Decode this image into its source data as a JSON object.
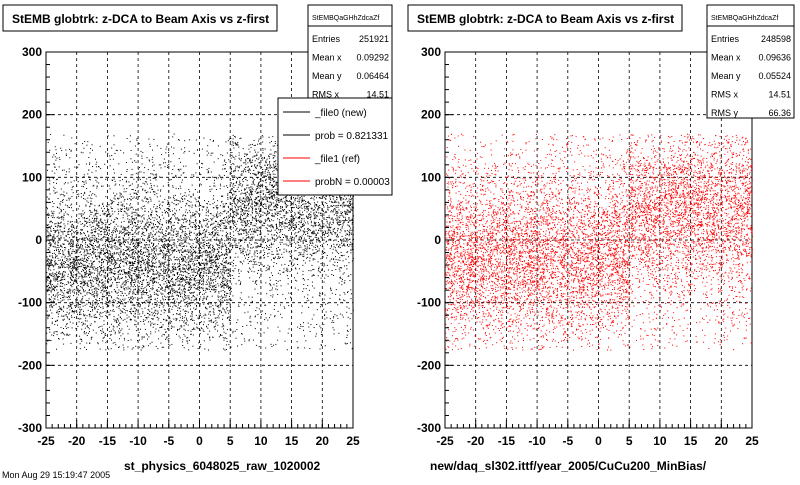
{
  "chart_data": [
    {
      "type": "scatter",
      "title": "StEMB globtrk: z-DCA to Beam Axis vs z-first",
      "xlabel": "st_physics_6048025_raw_1020002",
      "ylabel": "",
      "xlim": [
        -25,
        25
      ],
      "ylim": [
        -300,
        300
      ],
      "x_ticks": [
        "-25",
        "-20",
        "-15",
        "-10",
        "-5",
        "0",
        "5",
        "10",
        "15",
        "20",
        "25"
      ],
      "y_ticks": [
        "300",
        "200",
        "100",
        "0",
        "-100",
        "-200",
        "-300"
      ],
      "grid": true,
      "marker_color": "#000000",
      "stats": {
        "name": "StEMBQaGHhZdcaZf",
        "rows": [
          {
            "label": "Entries",
            "value": "251921"
          },
          {
            "label": "Mean x",
            "value": "0.09292"
          },
          {
            "label": "Mean y",
            "value": "0.06464"
          },
          {
            "label": "RMS x",
            "value": "14.51"
          }
        ]
      },
      "legend": {
        "position": "top-right",
        "entries": [
          {
            "label": "_file0 (new)",
            "color": "#000000"
          },
          {
            "label": "prob = 0.821331",
            "color": "#000000"
          },
          {
            "label": "_file1 (ref)",
            "color": "#ff0000"
          },
          {
            "label": "probN = 0.00003",
            "color": "#ff0000"
          }
        ]
      },
      "density_bands": [
        {
          "x_range": [
            -25,
            5
          ],
          "y_center": -40,
          "y_spread": 55,
          "weight": 0.45
        },
        {
          "x_range": [
            5,
            25
          ],
          "y_center": 60,
          "y_spread": 50,
          "weight": 0.25
        },
        {
          "x_range": [
            -25,
            25
          ],
          "y_center": 0,
          "y_spread": 95,
          "weight": 0.3
        }
      ]
    },
    {
      "type": "scatter",
      "title": "StEMB globtrk: z-DCA to Beam Axis vs z-first",
      "xlabel": "new/daq_sl302.ittf/year_2005/CuCu200_MinBias/",
      "ylabel": "",
      "xlim": [
        -25,
        25
      ],
      "ylim": [
        -300,
        300
      ],
      "x_ticks": [
        "-25",
        "-20",
        "-15",
        "-10",
        "-5",
        "0",
        "5",
        "10",
        "15",
        "20",
        "25"
      ],
      "y_ticks": [
        "300",
        "200",
        "100",
        "0",
        "-100",
        "-200",
        "-300"
      ],
      "grid": true,
      "marker_color": "#ff0000",
      "stats": {
        "name": "StEMBQaGHhZdcaZf",
        "rows": [
          {
            "label": "Entries",
            "value": "248598"
          },
          {
            "label": "Mean x",
            "value": "0.09636"
          },
          {
            "label": "Mean y",
            "value": "0.05524"
          },
          {
            "label": "RMS x",
            "value": "14.51"
          },
          {
            "label": "RMS y",
            "value": "66.36"
          }
        ]
      },
      "density_bands": [
        {
          "x_range": [
            -25,
            5
          ],
          "y_center": -30,
          "y_spread": 60,
          "weight": 0.4
        },
        {
          "x_range": [
            5,
            25
          ],
          "y_center": 50,
          "y_spread": 55,
          "weight": 0.25
        },
        {
          "x_range": [
            -25,
            25
          ],
          "y_center": 0,
          "y_spread": 90,
          "weight": 0.35
        }
      ]
    }
  ],
  "footer": {
    "date_text": "Mon Aug 29 15:19:47 2005"
  }
}
